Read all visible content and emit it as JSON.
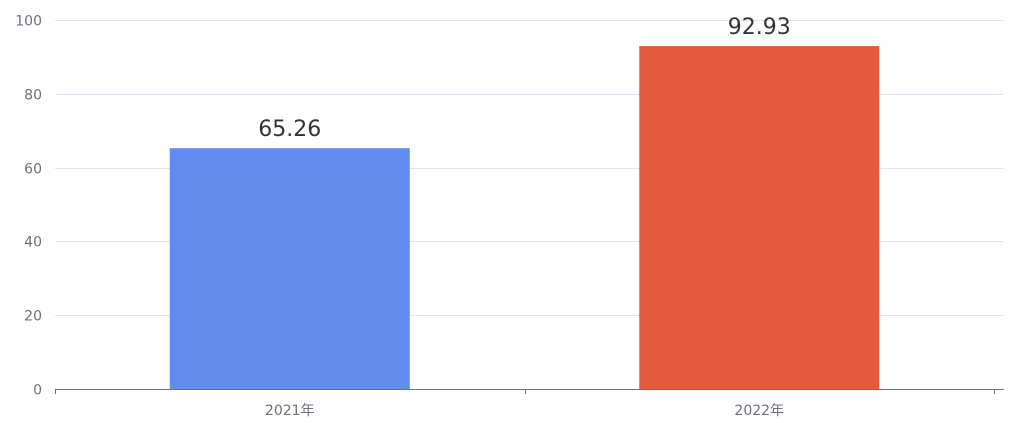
{
  "chart_data": {
    "type": "bar",
    "title": "",
    "xlabel": "",
    "ylabel": "",
    "categories": [
      "2021年",
      "2022年"
    ],
    "values": [
      65.26,
      92.93
    ],
    "data_labels": [
      "65.26",
      "92.93"
    ],
    "colors": [
      "#628bef",
      "#e35a3d"
    ],
    "ylim": [
      0,
      100
    ],
    "yticks": [
      0,
      20,
      40,
      60,
      80,
      100
    ],
    "grid": true,
    "legend": "none"
  }
}
